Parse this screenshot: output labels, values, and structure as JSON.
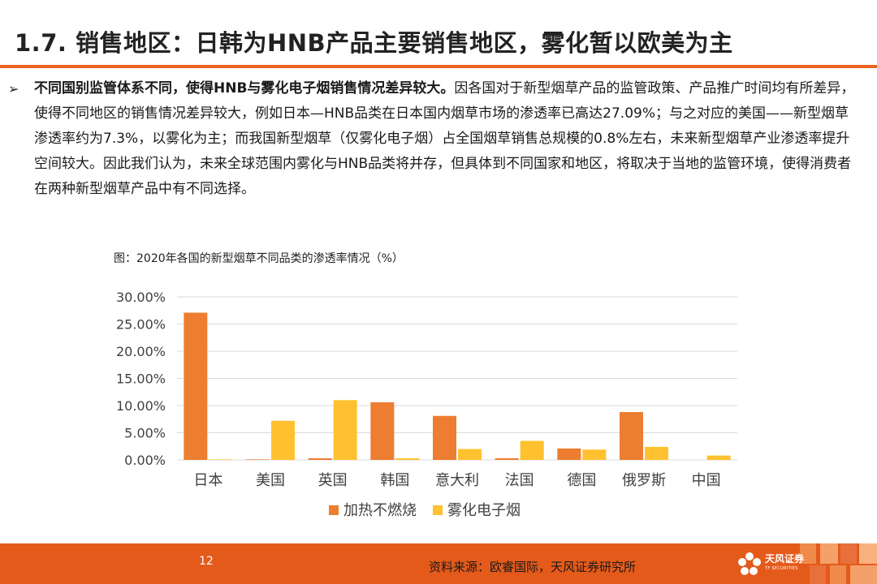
{
  "slide": {
    "title": "1.7. 销售地区：日韩为HNB产品主要销售地区，雾化暂以欧美为主",
    "bullet_lead": "不同国别监管体系不同，使得HNB与雾化电子烟销售情况差异较大。",
    "bullet_body": "因各国对于新型烟草产品的监管政策、产品推广时间均有所差异，使得不同地区的销售情况差异较大，例如日本—HNB品类在日本国内烟草市场的渗透率已高达27.09%；与之对应的美国——新型烟草渗透率约为7.3%，以雾化为主；而我国新型烟草（仅雾化电子烟）占全国烟草销售总规模的0.8%左右，未来新型烟草产业渗透率提升空间较大。因此我们认为，未来全球范围内雾化与HNB品类将并存，但具体到不同国家和地区，将取决于当地的监管环境，使得消费者在两种新型烟草产品中有不同选择。",
    "chart_caption": "图：2020年各国的新型烟草不同品类的渗透率情况（%）",
    "page_number": "12",
    "source": "资料来源：欧睿国际，天风证券研究所",
    "logo_name": "天风证券",
    "logo_sub": "TF SECURITIES"
  },
  "chart_data": {
    "type": "bar",
    "title": "",
    "xlabel": "",
    "ylabel": "",
    "categories": [
      "日本",
      "美国",
      "英国",
      "韩国",
      "意大利",
      "法国",
      "德国",
      "俄罗斯",
      "中国"
    ],
    "series": [
      {
        "name": "加热不燃烧",
        "color": "#ED7D31",
        "values": [
          27.09,
          0.1,
          0.3,
          10.6,
          8.1,
          0.3,
          2.1,
          8.8,
          0.0
        ]
      },
      {
        "name": "雾化电子烟",
        "color": "#FFC12F",
        "values": [
          0.1,
          7.2,
          11.0,
          0.3,
          2.0,
          3.5,
          1.9,
          2.4,
          0.8
        ]
      }
    ],
    "yticks": [
      "0.00%",
      "5.00%",
      "10.00%",
      "15.00%",
      "20.00%",
      "25.00%",
      "30.00%"
    ],
    "ylim": [
      0,
      30
    ],
    "grid": true,
    "legend": "bottom"
  },
  "colors": {
    "accent": "#E9621F",
    "footer": "#E45A1B",
    "grid": "#D9D9D9"
  }
}
